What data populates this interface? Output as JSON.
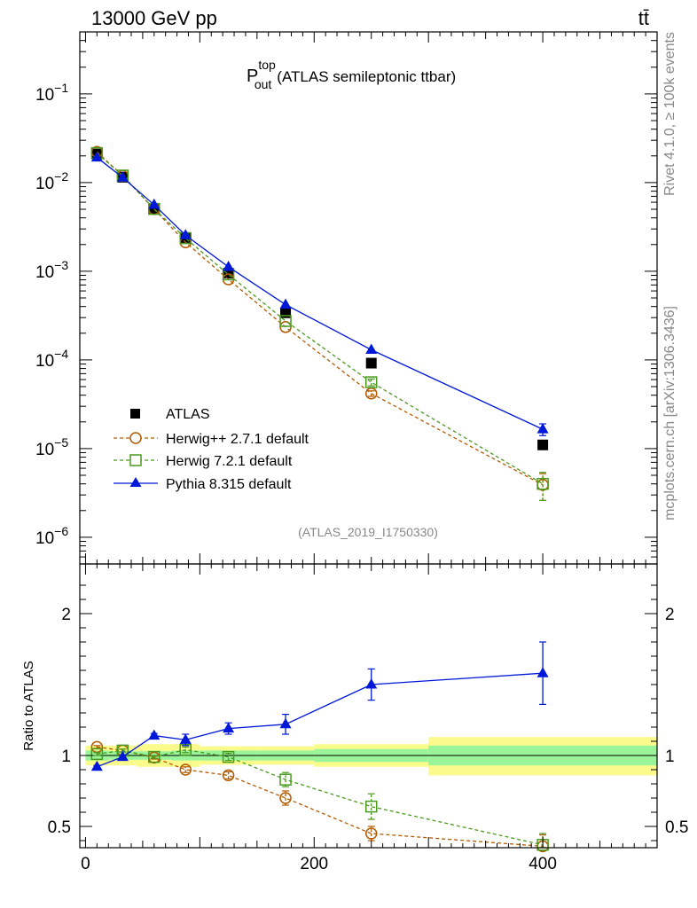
{
  "header": {
    "energy_label": "13000 GeV pp",
    "process_label": "tt̄"
  },
  "side_labels": {
    "rivet": "Rivet 4.1.0, ≥ 100k events",
    "mcplots": "mcplots.cern.ch [arXiv:1306.3436]"
  },
  "chart_data": [
    {
      "type": "line",
      "panel": "main",
      "title": "P_out^top (ATLAS semileptonic ttbar)",
      "title_parts": {
        "base": "P",
        "sup": "top",
        "sub": "out",
        "rest": "(ATLAS semileptonic ttbar)"
      },
      "analysis_label": "(ATLAS_2019_I1750330)",
      "xlim": [
        -5,
        500
      ],
      "yscale": "log",
      "ylim": [
        5e-07,
        0.5
      ],
      "ytick_labels": [
        {
          "value": 1e-06,
          "base": "10",
          "exp": "−6"
        },
        {
          "value": 1e-05,
          "base": "10",
          "exp": "−5"
        },
        {
          "value": 0.0001,
          "base": "10",
          "exp": "−4"
        },
        {
          "value": 0.001,
          "base": "10",
          "exp": "−3"
        },
        {
          "value": 0.01,
          "base": "10",
          "exp": "−2"
        },
        {
          "value": 0.1,
          "base": "10",
          "exp": "−1"
        }
      ],
      "legend_position": "bottom-left",
      "series": [
        {
          "name": "ATLAS",
          "color": "#000000",
          "marker": "square-filled",
          "line": "none",
          "x": [
            10,
            32.5,
            60,
            87.5,
            125,
            175,
            250,
            400
          ],
          "y": [
            0.021,
            0.0115,
            0.0051,
            0.0024,
            0.00095,
            0.00034,
            9.2e-05,
            1.1e-05
          ],
          "err": [
            0,
            0,
            0,
            0,
            0,
            0,
            0,
            0
          ]
        },
        {
          "name": "Herwig++ 2.7.1 default",
          "color": "#b35a00",
          "marker": "circle-open",
          "line": "dashed",
          "x": [
            10,
            32.5,
            60,
            87.5,
            125,
            175,
            250,
            400
          ],
          "y": [
            0.0222,
            0.0119,
            0.00502,
            0.00212,
            0.00081,
            0.000235,
            4.18e-05,
            3.9e-06
          ],
          "err": [
            0,
            0,
            0,
            0,
            0,
            0,
            3e-06,
            1.3e-06
          ]
        },
        {
          "name": "Herwig 7.2.1 default",
          "color": "#4a9a1e",
          "marker": "square-open",
          "line": "dashed",
          "x": [
            10,
            32.5,
            60,
            87.5,
            125,
            175,
            250,
            400
          ],
          "y": [
            0.0215,
            0.012,
            0.00504,
            0.00236,
            0.00092,
            0.000275,
            5.6e-05,
            4e-06
          ],
          "err": [
            0,
            0,
            0,
            0,
            0,
            0,
            5e-06,
            1.4e-06
          ]
        },
        {
          "name": "Pythia 8.315 default",
          "color": "#0018d8",
          "marker": "triangle-filled",
          "line": "solid",
          "x": [
            10,
            32.5,
            60,
            87.5,
            125,
            175,
            250,
            400
          ],
          "y": [
            0.0192,
            0.0114,
            0.00562,
            0.00255,
            0.00112,
            0.00042,
            0.00013,
            1.65e-05
          ],
          "err": [
            0,
            0,
            0,
            0,
            0,
            0,
            0,
            2.5e-06
          ]
        }
      ]
    },
    {
      "type": "line",
      "panel": "ratio",
      "ylabel": "Ratio to ATLAS",
      "xlim": [
        -5,
        500
      ],
      "ylim": [
        0.35,
        2.35
      ],
      "xtick_labels": [
        {
          "value": 0,
          "label": "0"
        },
        {
          "value": 200,
          "label": "200"
        },
        {
          "value": 400,
          "label": "400"
        }
      ],
      "ytick_labels": [
        {
          "value": 0.5,
          "label": "0.5"
        },
        {
          "value": 1,
          "label": "1"
        },
        {
          "value": 2,
          "label": "2"
        }
      ],
      "uncertainty_bands": {
        "bins": [
          [
            0,
            20
          ],
          [
            20,
            45
          ],
          [
            45,
            75
          ],
          [
            75,
            100
          ],
          [
            100,
            150
          ],
          [
            150,
            200
          ],
          [
            200,
            300
          ],
          [
            300,
            500
          ]
        ],
        "stat_lo": [
          0.965,
          0.97,
          0.97,
          0.965,
          0.965,
          0.965,
          0.955,
          0.93
        ],
        "stat_hi": [
          1.035,
          1.03,
          1.03,
          1.035,
          1.035,
          1.035,
          1.045,
          1.07
        ],
        "tot_lo": [
          0.93,
          0.93,
          0.92,
          0.92,
          0.935,
          0.935,
          0.92,
          0.86
        ],
        "tot_hi": [
          1.07,
          1.07,
          1.08,
          1.08,
          1.065,
          1.065,
          1.08,
          1.13
        ]
      },
      "series": [
        {
          "name": "Herwig++ 2.7.1 default",
          "color": "#b35a00",
          "marker": "circle-open",
          "line": "dashed",
          "x": [
            10,
            32.5,
            60,
            87.5,
            125,
            175,
            250,
            400
          ],
          "y": [
            1.06,
            1.035,
            0.985,
            0.9,
            0.86,
            0.7,
            0.45,
            0.36
          ],
          "err": [
            0.01,
            0.01,
            0.01,
            0.02,
            0.025,
            0.05,
            0.05,
            0.08
          ]
        },
        {
          "name": "Herwig 7.2.1 default",
          "color": "#4a9a1e",
          "marker": "square-open",
          "line": "dashed",
          "x": [
            10,
            32.5,
            60,
            87.5,
            125,
            175,
            250,
            400
          ],
          "y": [
            1.01,
            1.035,
            0.99,
            1.04,
            0.99,
            0.83,
            0.64,
            0.37
          ],
          "err": [
            0.01,
            0.01,
            0.01,
            0.02,
            0.025,
            0.05,
            0.09,
            0.08
          ]
        },
        {
          "name": "Pythia 8.315 default",
          "color": "#0018d8",
          "marker": "triangle-filled",
          "line": "solid",
          "x": [
            10,
            32.5,
            60,
            87.5,
            125,
            175,
            250,
            400
          ],
          "y": [
            0.92,
            0.99,
            1.14,
            1.11,
            1.19,
            1.22,
            1.5,
            1.58
          ],
          "err": [
            0.01,
            0.01,
            0.015,
            0.04,
            0.04,
            0.07,
            0.11,
            0.22
          ]
        }
      ]
    }
  ]
}
